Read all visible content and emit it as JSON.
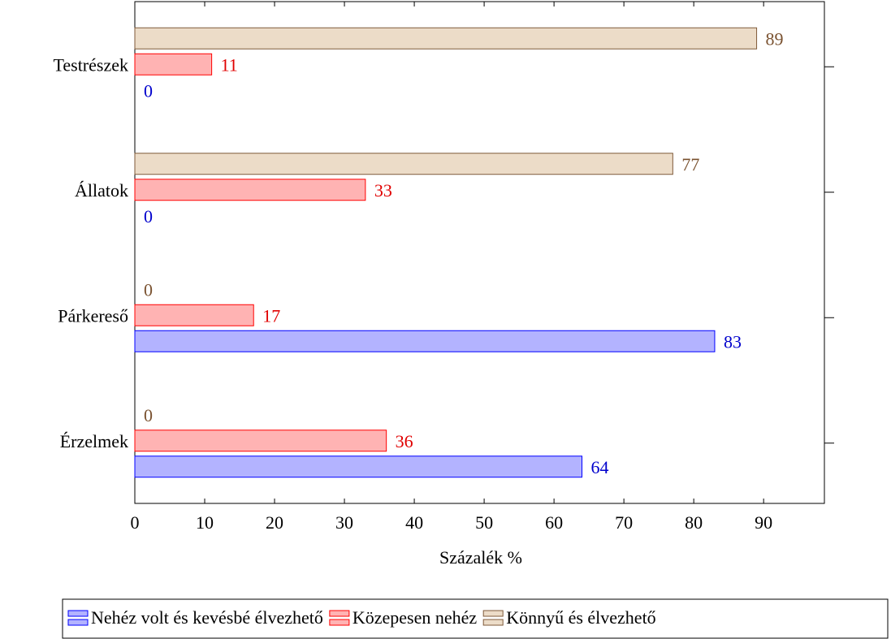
{
  "chart_data": {
    "type": "hbar",
    "categories": [
      "Érzelmek",
      "Párkereső",
      "Állatok",
      "Testrészek"
    ],
    "series": [
      {
        "name": "Nehéz volt és kevésbé élvezhető",
        "color": "#b3b3ff",
        "stroke": "#0000ff",
        "label_color": "#0000cc",
        "values": [
          64,
          83,
          0,
          0
        ]
      },
      {
        "name": "Közepesen nehéz",
        "color": "#ffb3b3",
        "stroke": "#ff0000",
        "label_color": "#e00000",
        "values": [
          36,
          17,
          33,
          11
        ]
      },
      {
        "name": "Könnyű és élvezhető",
        "color": "#ecdcc8",
        "stroke": "#7f5a3a",
        "label_color": "#7a5230",
        "values": [
          0,
          0,
          77,
          89
        ]
      }
    ],
    "xlabel": "Százalék %",
    "xlim": [
      0,
      98.7
    ],
    "xticks": [
      0,
      10,
      20,
      30,
      40,
      50,
      60,
      70,
      80,
      90
    ]
  }
}
